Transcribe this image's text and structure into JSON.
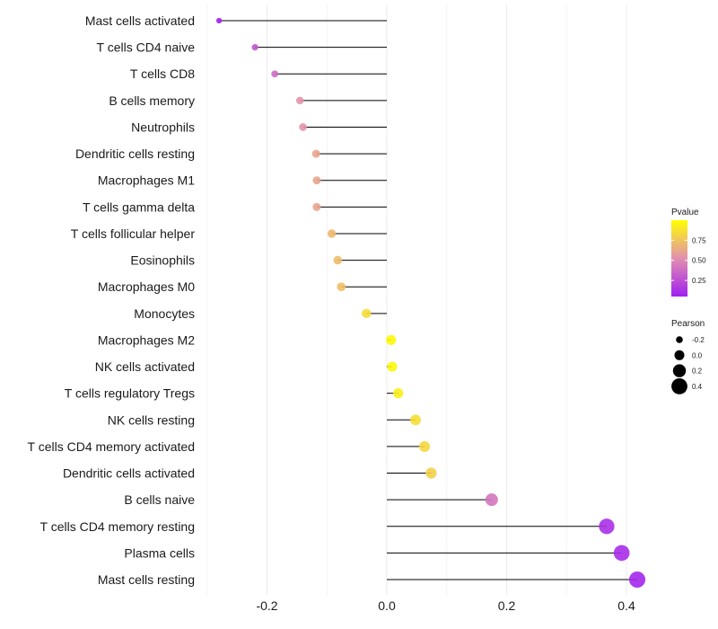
{
  "chart_data": {
    "type": "lollipop",
    "categories": [
      "Mast cells activated",
      "T cells CD4 naive",
      "T cells CD8",
      "B cells memory",
      "Neutrophils",
      "Dendritic cells resting",
      "Macrophages M1",
      "T cells gamma delta",
      "T cells follicular helper",
      "Eosinophils",
      "Macrophages M0",
      "Monocytes",
      "Macrophages M2",
      "NK cells activated",
      "T cells regulatory  Tregs ",
      "NK cells resting",
      "T cells CD4 memory activated",
      "Dendritic cells activated",
      "B cells naive",
      "T cells CD4 memory resting",
      "Plasma cells",
      "Mast cells resting"
    ],
    "pearson": [
      -0.28,
      -0.22,
      -0.187,
      -0.145,
      -0.14,
      -0.118,
      -0.117,
      -0.117,
      -0.092,
      -0.082,
      -0.076,
      -0.034,
      0.007,
      0.009,
      0.019,
      0.048,
      0.063,
      0.074,
      0.175,
      0.367,
      0.392,
      0.418
    ],
    "pvalue": [
      0.05,
      0.28,
      0.38,
      0.55,
      0.55,
      0.62,
      0.62,
      0.62,
      0.7,
      0.72,
      0.73,
      0.85,
      0.98,
      0.97,
      0.93,
      0.86,
      0.83,
      0.8,
      0.42,
      0.12,
      0.1,
      0.08
    ],
    "xlim": [
      -0.3,
      0.46
    ],
    "x_ticks": [
      -0.2,
      0.0,
      0.2,
      0.4
    ],
    "x_tick_labels": [
      "-0.2",
      "0.0",
      "0.2",
      "0.4"
    ],
    "xlabel": "",
    "ylabel": "",
    "color_legend": {
      "title": "Pvalue",
      "ticks": [
        0.25,
        0.5,
        0.75
      ],
      "tick_labels": [
        "0.25",
        "0.50",
        "0.75"
      ],
      "range": [
        0.05,
        1.0
      ],
      "low_color": "#a020f0",
      "mid_color": "#e28fb0",
      "high_color": "#ffff00"
    },
    "size_legend": {
      "title": "Pearson",
      "values": [
        -0.2,
        0.0,
        0.2,
        0.4
      ],
      "labels": [
        "-0.2",
        "0.0",
        "0.2",
        "0.4"
      ]
    },
    "legend_position": "right"
  }
}
